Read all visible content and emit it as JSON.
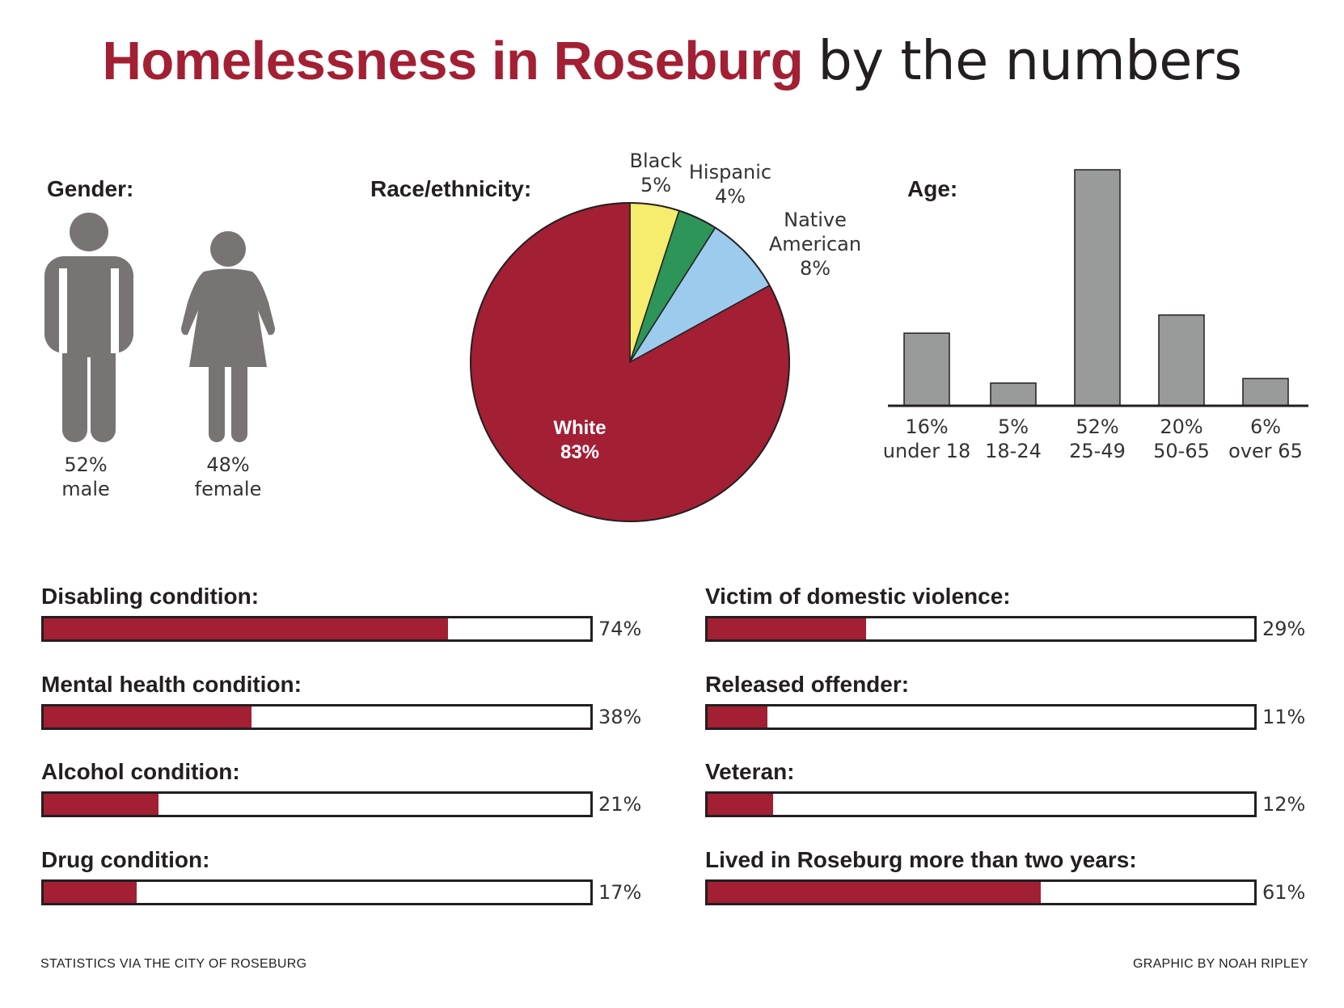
{
  "title": {
    "bold": "Homelessness in Roseburg",
    "light": "by the numbers"
  },
  "colors": {
    "accent": "#a31f34",
    "gray_icon": "#797474",
    "bar_gray": "#999b9b",
    "black": "#231f20"
  },
  "gender": {
    "label": "Gender:",
    "male": {
      "pct": "52%",
      "label": "male",
      "icon": "male-figure-icon"
    },
    "female": {
      "pct": "48%",
      "label": "female",
      "icon": "female-figure-icon"
    }
  },
  "race": {
    "label": "Race/ethnicity:",
    "slices": [
      {
        "name": "Black",
        "value": 5,
        "display": "5%",
        "color": "#f6ec6d"
      },
      {
        "name": "Hispanic",
        "value": 4,
        "display": "4%",
        "color": "#2c9557"
      },
      {
        "name": "Native American",
        "name_line1": "Native",
        "name_line2": "American",
        "value": 8,
        "display": "8%",
        "color": "#9ccbee"
      },
      {
        "name": "White",
        "value": 83,
        "display": "83%",
        "color": "#a31f34"
      }
    ]
  },
  "age": {
    "label": "Age:",
    "bars": [
      {
        "value": 16,
        "pct": "16%",
        "category": "under 18"
      },
      {
        "value": 5,
        "pct": "5%",
        "category": "18-24"
      },
      {
        "value": 52,
        "pct": "52%",
        "category": "25-49"
      },
      {
        "value": 20,
        "pct": "20%",
        "category": "50-65"
      },
      {
        "value": 6,
        "pct": "6%",
        "category": "over 65"
      }
    ]
  },
  "conditions": {
    "left": [
      {
        "label": "Disabling condition:",
        "value": 74,
        "pct": "74%"
      },
      {
        "label": "Mental health condition:",
        "value": 38,
        "pct": "38%"
      },
      {
        "label": "Alcohol condition:",
        "value": 21,
        "pct": "21%"
      },
      {
        "label": "Drug condition:",
        "value": 17,
        "pct": "17%"
      }
    ],
    "right": [
      {
        "label": "Victim of domestic violence:",
        "value": 29,
        "pct": "29%"
      },
      {
        "label": "Released offender:",
        "value": 11,
        "pct": "11%"
      },
      {
        "label": "Veteran:",
        "value": 12,
        "pct": "12%"
      },
      {
        "label": "Lived in Roseburg more than two years:",
        "value": 61,
        "pct": "61%"
      }
    ]
  },
  "footer": {
    "source": "STATISTICS VIA THE CITY OF ROSEBURG",
    "credit": "GRAPHIC BY NOAH RIPLEY"
  },
  "chart_data": [
    {
      "type": "pie",
      "categories": [
        "Black",
        "Hispanic",
        "Native American",
        "White"
      ],
      "values": [
        5,
        4,
        8,
        83
      ],
      "title": "Race/ethnicity:"
    },
    {
      "type": "bar",
      "categories": [
        "under 18",
        "18-24",
        "25-49",
        "50-65",
        "over 65"
      ],
      "values": [
        16,
        5,
        52,
        20,
        6
      ],
      "title": "Age:",
      "ylim": [
        0,
        52
      ]
    },
    {
      "type": "bar",
      "categories": [
        "Disabling condition:",
        "Mental health condition:",
        "Alcohol condition:",
        "Drug condition:"
      ],
      "values": [
        74,
        38,
        21,
        17
      ],
      "ylim": [
        0,
        100
      ]
    },
    {
      "type": "bar",
      "categories": [
        "Victim of domestic violence:",
        "Released offender:",
        "Veteran:",
        "Lived in Roseburg more than two years:"
      ],
      "values": [
        29,
        11,
        12,
        61
      ],
      "ylim": [
        0,
        100
      ]
    }
  ]
}
